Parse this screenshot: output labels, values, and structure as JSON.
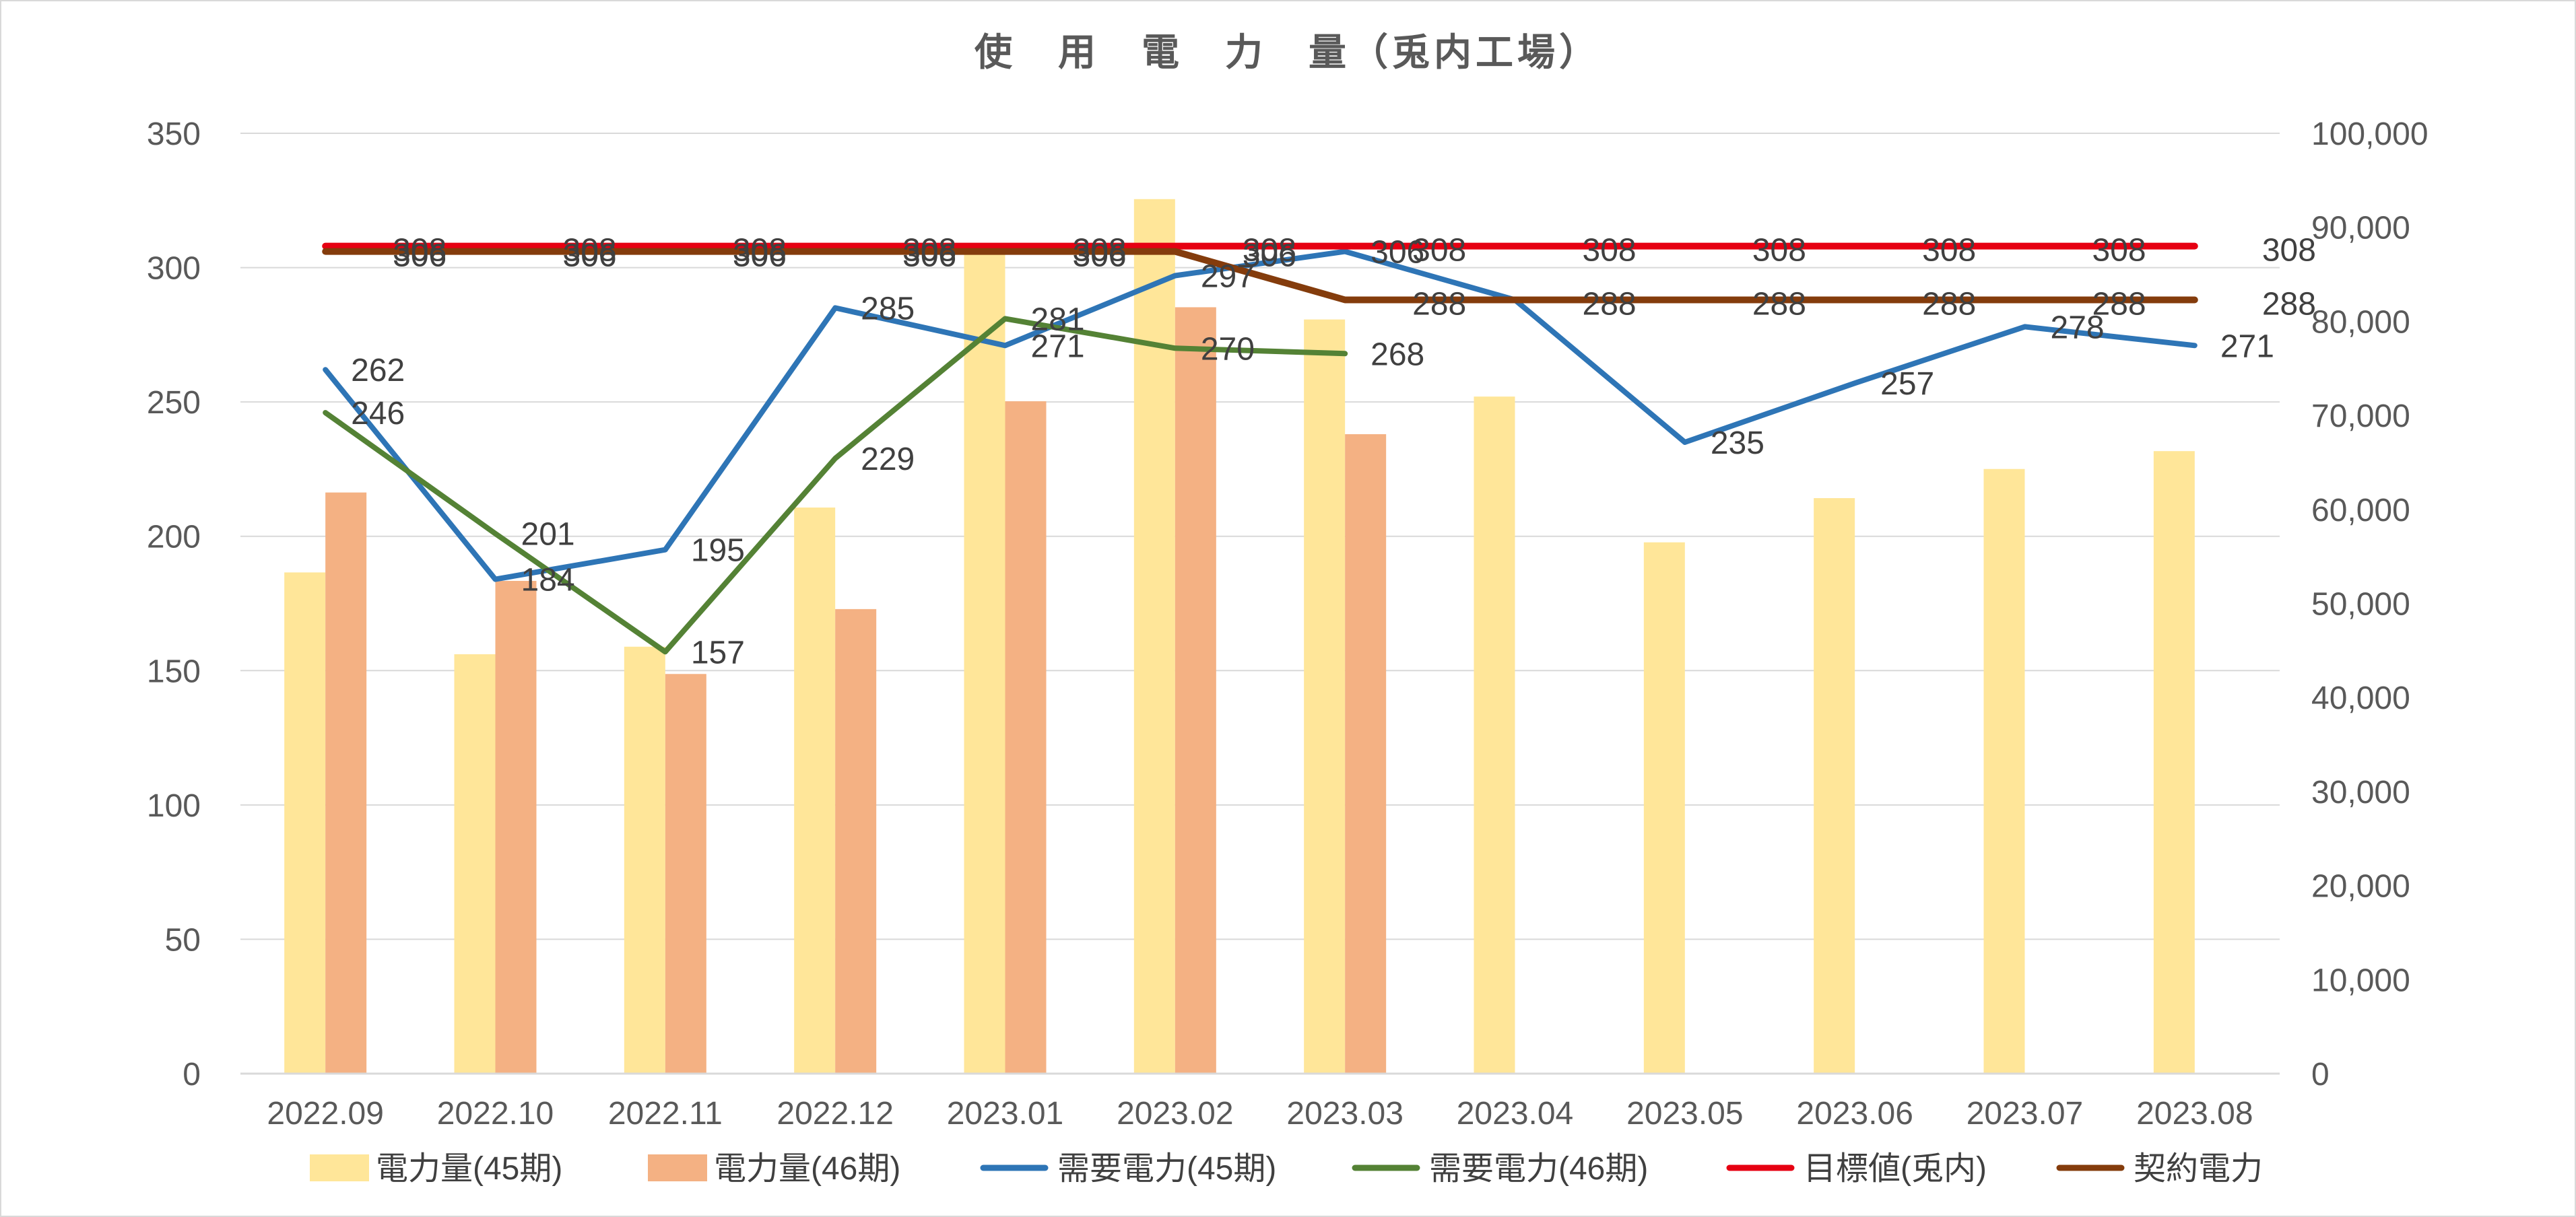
{
  "chart_data": {
    "type": "bar+line",
    "title": "使　用　電　力　量（兎内工場）",
    "categories": [
      "2022.09",
      "2022.10",
      "2022.11",
      "2022.12",
      "2023.01",
      "2023.02",
      "2023.03",
      "2023.04",
      "2023.05",
      "2023.06",
      "2023.07",
      "2023.08"
    ],
    "y_left": {
      "ylim": [
        0,
        350
      ],
      "ticks": [
        "0",
        "50",
        "100",
        "150",
        "200",
        "250",
        "300",
        "350"
      ]
    },
    "y_right": {
      "ylim": [
        0,
        100000
      ],
      "ticks": [
        "0",
        "10,000",
        "20,000",
        "30,000",
        "40,000",
        "50,000",
        "60,000",
        "70,000",
        "80,000",
        "90,000",
        "100,000"
      ]
    },
    "grid": true,
    "legend_position": "bottom",
    "series": [
      {
        "name": "電力量(45期)",
        "type": "bar",
        "axis": "right",
        "color": "#FFE699",
        "values": [
          53300,
          44600,
          45400,
          60200,
          88000,
          93000,
          80200,
          72000,
          56500,
          61200,
          64300,
          66200
        ]
      },
      {
        "name": "電力量(46期)",
        "type": "bar",
        "axis": "right",
        "color": "#F4B183",
        "values": [
          61800,
          52400,
          42500,
          49400,
          71500,
          81500,
          68000,
          null,
          null,
          null,
          null,
          null
        ]
      },
      {
        "name": "需要電力(45期)",
        "type": "line",
        "axis": "left",
        "color": "#2E75B6",
        "values": [
          262,
          184,
          195,
          285,
          271,
          297,
          306,
          288,
          235,
          257,
          278,
          271
        ],
        "labels": [
          "262",
          "184",
          "195",
          "285",
          "271",
          "297",
          "306",
          "",
          "235",
          "257",
          "278",
          "271"
        ]
      },
      {
        "name": "需要電力(46期)",
        "type": "line",
        "axis": "left",
        "color": "#548235",
        "values": [
          246,
          201,
          157,
          229,
          281,
          270,
          268,
          null,
          null,
          null,
          null,
          null
        ],
        "labels": [
          "246",
          "201",
          "157",
          "229",
          "281",
          "270",
          "268",
          "",
          "",
          "",
          "",
          ""
        ]
      },
      {
        "name": "目標値(兎内)",
        "type": "line",
        "axis": "left",
        "color": "#E60012",
        "values": [
          308,
          308,
          308,
          308,
          308,
          308,
          308,
          308,
          308,
          308,
          308,
          308
        ],
        "labels": [
          "308",
          "308",
          "308",
          "308",
          "308",
          "308",
          "308",
          "308",
          "308",
          "308",
          "308",
          "308"
        ]
      },
      {
        "name": "契約電力",
        "type": "line",
        "axis": "left",
        "color": "#843C0C",
        "values": [
          306,
          306,
          306,
          306,
          306,
          306,
          288,
          288,
          288,
          288,
          288,
          288
        ],
        "labels": [
          "306",
          "306",
          "306",
          "306",
          "306",
          "306",
          "288",
          "288",
          "288",
          "288",
          "288",
          "288"
        ]
      }
    ]
  }
}
